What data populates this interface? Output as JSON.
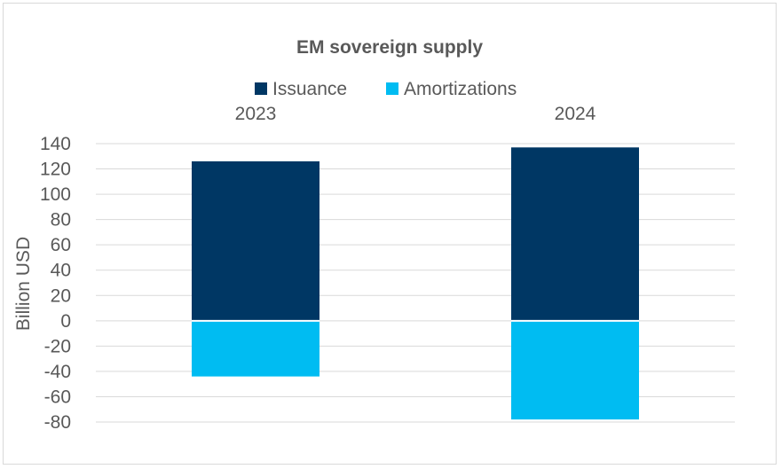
{
  "chart_data": {
    "type": "bar",
    "stacked": true,
    "title": "EM sovereign supply",
    "ylabel": "Billion USD",
    "xlabel": "",
    "categories": [
      "2023",
      "2024"
    ],
    "series": [
      {
        "name": "Issuance",
        "values": [
          126,
          137
        ],
        "color": "#003764"
      },
      {
        "name": "Amortizations",
        "values": [
          -44,
          -78
        ],
        "color": "#00bcf2"
      }
    ],
    "ylim": [
      -80,
      140
    ],
    "yticks": [
      140,
      120,
      100,
      80,
      60,
      40,
      20,
      0,
      -20,
      -40,
      -60,
      -80
    ],
    "grid": true,
    "legend_position": "top",
    "category_labels_position": "top"
  }
}
